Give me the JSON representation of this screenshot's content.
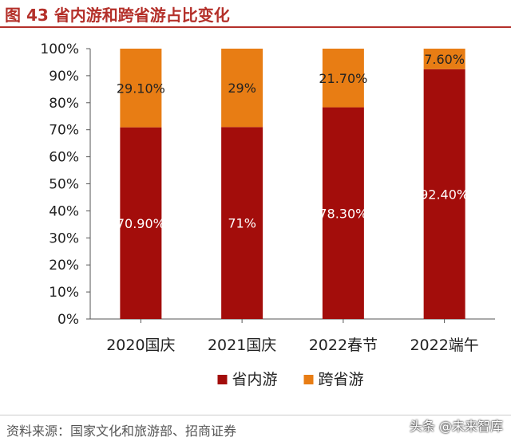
{
  "title": "图 43 省内游和跨省游占比变化",
  "source": "资料来源：国家文化和旅游部、招商证券",
  "watermark": "头条 @未来智库",
  "colors": {
    "series1": "#a30d0b",
    "series2": "#e87d14",
    "title": "#b4302a"
  },
  "chart_data": {
    "type": "bar",
    "stacked": true,
    "categories": [
      "2020国庆",
      "2021国庆",
      "2022春节",
      "2022端午"
    ],
    "series": [
      {
        "name": "省内游",
        "values": [
          70.9,
          71,
          78.3,
          92.4
        ],
        "labels": [
          "70.90%",
          "71%",
          "78.30%",
          "92.40%"
        ],
        "color": "#a30d0b"
      },
      {
        "name": "跨省游",
        "values": [
          29.1,
          29,
          21.7,
          7.6
        ],
        "labels": [
          "29.10%",
          "29%",
          "21.70%",
          "7.60%"
        ],
        "color": "#e87d14"
      }
    ],
    "y_ticks": [
      "0%",
      "10%",
      "20%",
      "30%",
      "40%",
      "50%",
      "60%",
      "70%",
      "80%",
      "90%",
      "100%"
    ],
    "ylim": [
      0,
      100
    ],
    "grid": false,
    "legend_position": "bottom"
  }
}
